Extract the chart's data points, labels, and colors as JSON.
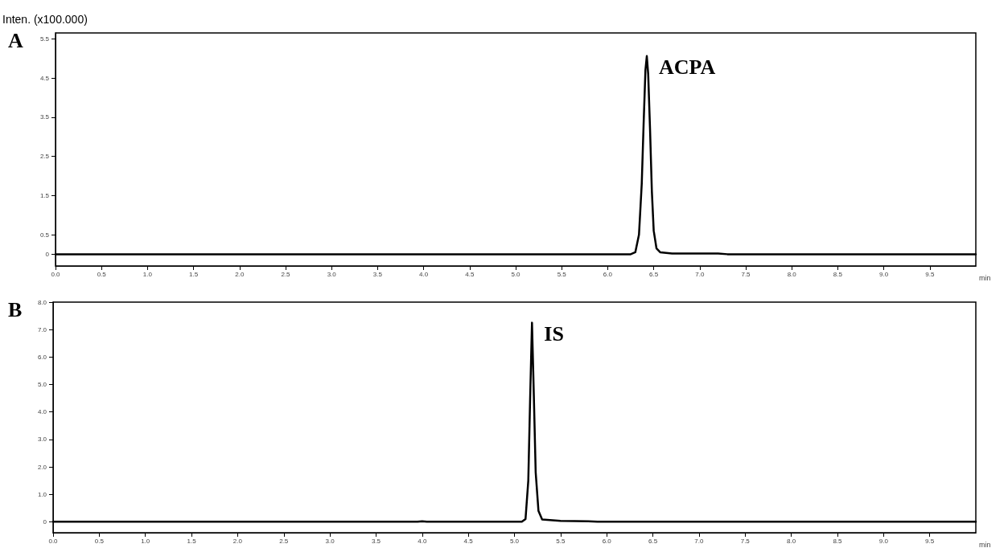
{
  "chart_data": [
    {
      "type": "line",
      "ylabel": "Inten. (x100.000)",
      "xlabel": "min",
      "annotations": [
        "A",
        "ACPA"
      ],
      "series": [
        {
          "color": "#000000",
          "x": [
            0,
            6.25,
            6.3,
            6.34,
            6.37,
            6.39,
            6.41,
            6.425,
            6.44,
            6.46,
            6.48,
            6.5,
            6.53,
            6.57,
            6.7,
            7.2,
            7.3,
            10
          ],
          "values": [
            0,
            0,
            0.05,
            0.5,
            1.8,
            3.3,
            4.7,
            5.06,
            4.6,
            3.2,
            1.6,
            0.6,
            0.15,
            0.05,
            0.02,
            0.02,
            0,
            0
          ]
        }
      ],
      "xlim": [
        0,
        10
      ],
      "xticks": [
        {
          "value": 0,
          "label": "0.0"
        },
        {
          "value": 0.5,
          "label": "0.5"
        },
        {
          "value": 1,
          "label": "1.0"
        },
        {
          "value": 1.5,
          "label": "1.5"
        },
        {
          "value": 2,
          "label": "2.0"
        },
        {
          "value": 2.5,
          "label": "2.5"
        },
        {
          "value": 3,
          "label": "3.0"
        },
        {
          "value": 3.5,
          "label": "3.5"
        },
        {
          "value": 4,
          "label": "4.0"
        },
        {
          "value": 4.5,
          "label": "4.5"
        },
        {
          "value": 5,
          "label": "5.0"
        },
        {
          "value": 5.5,
          "label": "5.5"
        },
        {
          "value": 6,
          "label": "6.0"
        },
        {
          "value": 6.5,
          "label": "6.5"
        },
        {
          "value": 7,
          "label": "7.0"
        },
        {
          "value": 7.5,
          "label": "7.5"
        },
        {
          "value": 8,
          "label": "8.0"
        },
        {
          "value": 8.5,
          "label": "8.5"
        },
        {
          "value": 9,
          "label": "9.0"
        },
        {
          "value": 9.5,
          "label": "9.5"
        }
      ],
      "ylim": [
        -0.3,
        5.65
      ],
      "yticks": [
        0,
        0.5,
        1.5,
        2.5,
        3.5,
        4.5,
        5.5
      ],
      "grid": false,
      "marker": "none",
      "line_style": "solid"
    },
    {
      "type": "line",
      "xlabel": "min",
      "annotations": [
        "B",
        "IS"
      ],
      "series": [
        {
          "color": "#000000",
          "x": [
            0,
            3.95,
            4.0,
            4.05,
            5.08,
            5.12,
            5.15,
            5.17,
            5.19,
            5.21,
            5.23,
            5.26,
            5.3,
            5.5,
            5.8,
            5.9,
            10
          ],
          "values": [
            0,
            0,
            0.02,
            0,
            0,
            0.1,
            1.5,
            4.5,
            7.25,
            4.6,
            1.8,
            0.4,
            0.08,
            0.03,
            0.02,
            0,
            0
          ]
        }
      ],
      "xlim": [
        0,
        10
      ],
      "xticks": [
        {
          "value": 0,
          "label": "0.0"
        },
        {
          "value": 0.5,
          "label": "0.5"
        },
        {
          "value": 1,
          "label": "1.0"
        },
        {
          "value": 1.5,
          "label": "1.5"
        },
        {
          "value": 2,
          "label": "2.0"
        },
        {
          "value": 2.5,
          "label": "2.5"
        },
        {
          "value": 3,
          "label": "3.0"
        },
        {
          "value": 3.5,
          "label": "3.5"
        },
        {
          "value": 4,
          "label": "4.0"
        },
        {
          "value": 4.5,
          "label": "4.5"
        },
        {
          "value": 5,
          "label": "5.0"
        },
        {
          "value": 5.5,
          "label": "5.5"
        },
        {
          "value": 6,
          "label": "6.0"
        },
        {
          "value": 6.5,
          "label": "6.5"
        },
        {
          "value": 7,
          "label": "7.0"
        },
        {
          "value": 7.5,
          "label": "7.5"
        },
        {
          "value": 8,
          "label": "8.0"
        },
        {
          "value": 8.5,
          "label": "8.5"
        },
        {
          "value": 9,
          "label": "9.0"
        },
        {
          "value": 9.5,
          "label": "9.5"
        }
      ],
      "ylim": [
        -0.4,
        8
      ],
      "yticks": [
        0,
        {
          "value": 1,
          "label": "1.0"
        },
        {
          "value": 2,
          "label": "2.0"
        },
        {
          "value": 3,
          "label": "3.0"
        },
        {
          "value": 4,
          "label": "4.0"
        },
        {
          "value": 5,
          "label": "5.0"
        },
        {
          "value": 6,
          "label": "6.0"
        },
        {
          "value": 7,
          "label": "7.0"
        },
        {
          "value": 8,
          "label": "8.0"
        }
      ],
      "grid": false,
      "marker": "none",
      "line_style": "solid"
    }
  ]
}
